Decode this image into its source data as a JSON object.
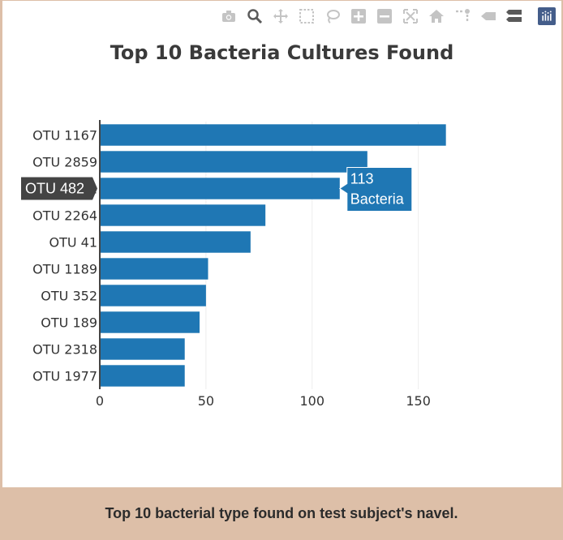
{
  "modebar": {
    "buttons": [
      {
        "name": "camera-icon",
        "active": false
      },
      {
        "name": "zoom-icon",
        "active": true
      },
      {
        "name": "pan-icon",
        "active": false
      },
      {
        "name": "box-select-icon",
        "active": false
      },
      {
        "name": "lasso-select-icon",
        "active": false
      },
      {
        "name": "zoom-in-icon",
        "active": false
      },
      {
        "name": "zoom-out-icon",
        "active": false
      },
      {
        "name": "autoscale-icon",
        "active": false
      },
      {
        "name": "reset-axes-icon",
        "active": false
      },
      {
        "name": "spike-lines-icon",
        "active": false
      },
      {
        "name": "hover-closest-icon",
        "active": false
      },
      {
        "name": "hover-compare-icon",
        "active": false
      }
    ],
    "logo": "plotly-logo-icon"
  },
  "chart_data": {
    "type": "bar",
    "orientation": "horizontal",
    "title": "Top 10 Bacteria Cultures Found",
    "categories": [
      "OTU 1167",
      "OTU 2859",
      "OTU 482",
      "OTU 2264",
      "OTU 41",
      "OTU 1189",
      "OTU 352",
      "OTU 189",
      "OTU 2318",
      "OTU 1977"
    ],
    "values": [
      163,
      126,
      113,
      78,
      71,
      51,
      50,
      47,
      40,
      40
    ],
    "xlim": [
      0,
      170
    ],
    "xticks": [
      0,
      50,
      100,
      150
    ],
    "grid": true,
    "bar_color": "#1f77b4",
    "hover": {
      "category": "OTU 482",
      "value_text": "113",
      "text": "Bacteria"
    }
  },
  "footer": {
    "caption": "Top 10 bacterial type found on test subject's navel."
  }
}
